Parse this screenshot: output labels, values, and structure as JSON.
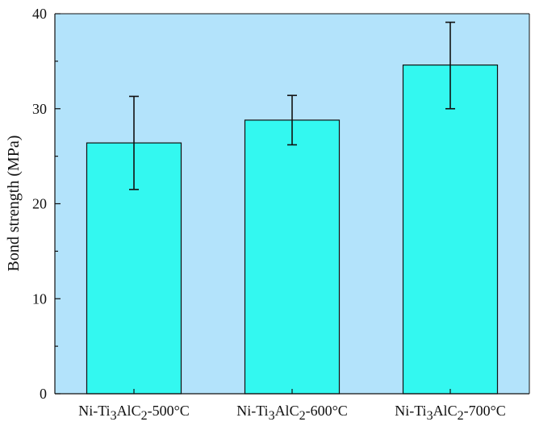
{
  "chart_data": {
    "type": "bar",
    "categories": [
      "Ni-Ti3AlC2-500°C",
      "Ni-Ti3AlC2-600°C",
      "Ni-Ti3AlC2-700°C"
    ],
    "category_labels": [
      {
        "pre": "Ni-Ti",
        "sub1": "3",
        "mid": "AlC",
        "sub2": "2",
        "post": "-500°C"
      },
      {
        "pre": "Ni-Ti",
        "sub1": "3",
        "mid": "AlC",
        "sub2": "2",
        "post": "-600°C"
      },
      {
        "pre": "Ni-Ti",
        "sub1": "3",
        "mid": "AlC",
        "sub2": "2",
        "post": "-700°C"
      }
    ],
    "values": [
      26.4,
      28.8,
      34.6
    ],
    "error_low": [
      21.5,
      26.2,
      30.0
    ],
    "error_high": [
      31.3,
      31.4,
      39.1
    ],
    "title": "",
    "xlabel": "",
    "ylabel": "Bond strength (MPa)",
    "ylim": [
      0,
      40
    ],
    "yticks": [
      "0",
      "10",
      "20",
      "30",
      "40"
    ],
    "grid": false,
    "legend": "none",
    "colors": {
      "plot_background": "#b3e3fb",
      "bar_fill": "#33f8f0",
      "bar_stroke": "#111111",
      "error_bar": "#111111"
    }
  }
}
